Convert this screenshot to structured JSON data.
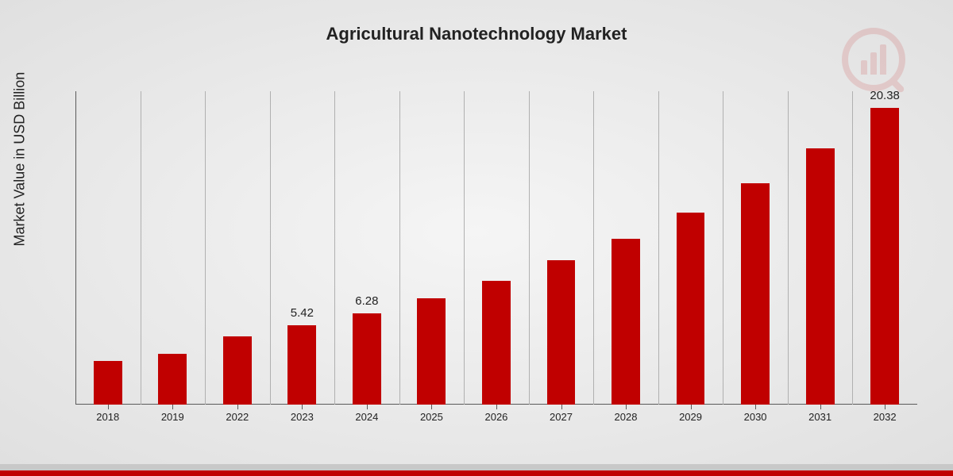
{
  "chart": {
    "type": "bar",
    "title": "Agricultural Nanotechnology Market",
    "ylabel": "Market Value in USD Billion",
    "title_fontsize": 22,
    "ylabel_fontsize": 18,
    "xlabel_fontsize": 13,
    "datalabel_fontsize": 15,
    "categories": [
      "2018",
      "2019",
      "2022",
      "2023",
      "2024",
      "2025",
      "2026",
      "2027",
      "2028",
      "2029",
      "2030",
      "2031",
      "2032"
    ],
    "values": [
      3.0,
      3.5,
      4.7,
      5.42,
      6.28,
      7.3,
      8.5,
      9.9,
      11.4,
      13.2,
      15.2,
      17.6,
      20.38
    ],
    "value_labels": {
      "2023": "5.42",
      "2024": "6.28",
      "2032": "20.38"
    },
    "ylim": [
      0,
      21.5
    ],
    "bar_color": "#c00000",
    "background": "radial-gradient(ellipse at center, #f5f5f5 0%, #e0e0e0 100%)",
    "grid_color": "#b0b0b0",
    "axis_color": "#5a5a5a",
    "text_color": "#222222",
    "bar_width_ratio": 0.44,
    "footer_grey": "#c8c8c8",
    "footer_red": "#c00000",
    "watermark_color": "#c00000",
    "watermark_opacity": 0.12
  }
}
